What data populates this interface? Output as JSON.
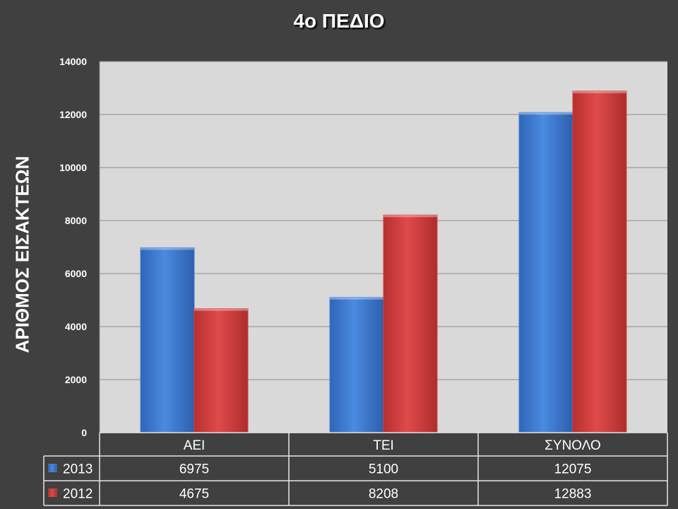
{
  "chart_data": {
    "type": "bar",
    "title": "4ο ΠΕΔΙΟ",
    "ylabel": "ΑΡΙΘΜΟΣ ΕΙΣΑΚΤΕΩΝ",
    "xlabel": "",
    "categories": [
      "ΑΕΙ",
      "ΤΕΙ",
      "ΣΥΝΟΛΟ"
    ],
    "series": [
      {
        "name": "2013",
        "color": "#3f7fd6",
        "values": [
          6975,
          5100,
          12075
        ]
      },
      {
        "name": "2012",
        "color": "#d63f3f",
        "values": [
          4675,
          8208,
          12883
        ]
      }
    ],
    "ylim": [
      0,
      14000
    ],
    "yticks": [
      0,
      2000,
      4000,
      6000,
      8000,
      10000,
      12000,
      14000
    ],
    "grid": true,
    "legend": "data-table",
    "plot_background": "#d9d9d9"
  }
}
